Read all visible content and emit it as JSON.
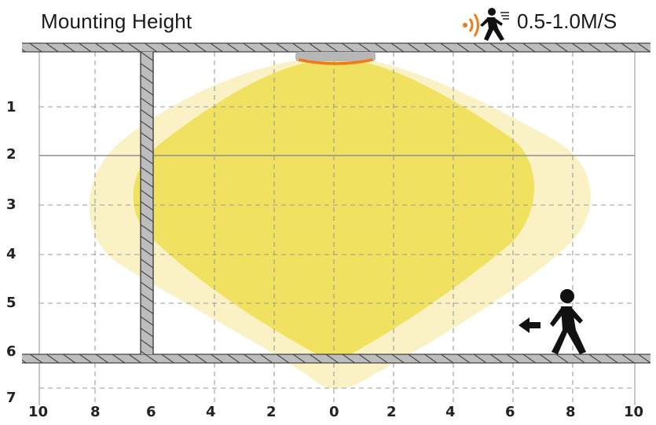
{
  "title": "Mounting Height",
  "speed_label": "0.5-1.0M/S",
  "y_axis_ticks": [
    "1",
    "2",
    "3",
    "4",
    "5",
    "6",
    "7"
  ],
  "x_axis_ticks": [
    "10",
    "8",
    "6",
    "4",
    "2",
    "0",
    "2",
    "4",
    "6",
    "8",
    "10"
  ],
  "icons": {
    "sensor_wave": "motion-wave-icon",
    "speed_person": "walking-person-icon",
    "walking_person": "walking-person-icon",
    "direction_arrow": "arrow-left-icon"
  },
  "colors": {
    "inner_zone": "#f1e160",
    "outer_zone": "#faf2c4",
    "wall_hatch": "#555555",
    "sensor_accent": "#f07a1a",
    "grid": "#9a9a9a"
  }
}
